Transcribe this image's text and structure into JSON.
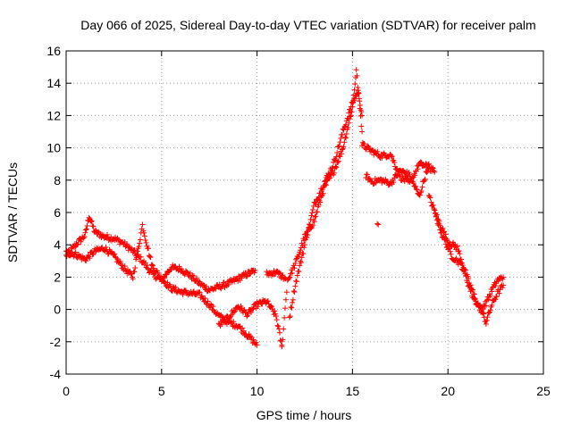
{
  "chart_data": {
    "type": "scatter",
    "title": "Day 066 of 2025, Sidereal Day-to-day VTEC variation (SDTVAR) for receiver palm",
    "xlabel": "GPS time / hours",
    "ylabel": "SDTVAR / TECUs",
    "xlim": [
      0,
      25
    ],
    "ylim": [
      -4,
      16
    ],
    "xticks": [
      0,
      5,
      10,
      15,
      20,
      25
    ],
    "yticks": [
      -4,
      -2,
      0,
      2,
      4,
      6,
      8,
      10,
      12,
      14,
      16
    ],
    "grid": true,
    "marker": "+",
    "series": [
      {
        "name": "palm",
        "color": "#ff0000",
        "bands": [
          {
            "x": [
              0.0,
              0.5,
              1.0,
              1.2,
              1.5,
              2.0,
              2.5,
              3.0,
              3.5,
              4.0,
              4.5,
              5.0,
              5.5,
              6.0,
              6.5,
              7.0,
              7.5,
              8.0,
              8.5,
              9.0,
              9.5,
              9.9
            ],
            "y": [
              3.3,
              4.0,
              4.6,
              5.8,
              4.8,
              4.5,
              4.4,
              4.1,
              3.6,
              3.0,
              2.2,
              1.8,
              2.6,
              2.5,
              2.1,
              1.6,
              1.2,
              1.4,
              1.6,
              1.9,
              2.2,
              2.4
            ]
          },
          {
            "x": [
              0.0,
              0.5,
              1.0,
              1.5,
              2.0,
              2.5,
              3.0,
              3.5,
              4.0,
              4.5,
              5.0,
              5.5,
              6.0,
              6.5,
              7.0,
              7.5,
              8.0,
              8.5,
              9.0,
              9.5,
              10.0
            ],
            "y": [
              3.5,
              3.4,
              3.1,
              3.6,
              3.8,
              3.3,
              2.6,
              2.0,
              5.2,
              2.7,
              1.9,
              1.3,
              1.1,
              1.0,
              0.9,
              0.3,
              -0.4,
              -0.8,
              -1.0,
              -1.6,
              -2.2
            ]
          },
          {
            "x": [
              10.5,
              11.0,
              11.5
            ],
            "y": [
              2.2,
              2.3,
              1.9
            ]
          },
          {
            "x": [
              8.0,
              8.5,
              9.0,
              9.5,
              10.0,
              10.5,
              11.0,
              11.3
            ],
            "y": [
              -1.0,
              -0.5,
              0.2,
              -0.3,
              0.3,
              0.5,
              -0.4,
              -2.3
            ]
          },
          {
            "x": [
              11.3,
              11.6,
              12.0,
              12.5,
              13.0,
              13.5,
              14.0,
              14.5,
              15.0,
              15.2,
              15.5
            ],
            "y": [
              -2.3,
              1.8,
              2.8,
              4.5,
              5.5,
              7.5,
              8.5,
              10.0,
              12.5,
              14.8,
              11.0
            ]
          },
          {
            "x": [
              11.7,
              12.0,
              12.5,
              13.0,
              13.5,
              14.0,
              14.5,
              15.0,
              15.3,
              15.5
            ],
            "y": [
              -0.5,
              1.5,
              4.0,
              6.5,
              7.8,
              9.0,
              11.0,
              12.8,
              13.5,
              12.0
            ]
          },
          {
            "x": [
              15.5,
              16.0,
              16.5,
              17.0,
              17.5,
              18.0,
              18.5,
              19.0,
              19.3
            ],
            "y": [
              10.2,
              9.8,
              9.5,
              9.6,
              8.2,
              7.8,
              9.0,
              8.8,
              8.5
            ]
          },
          {
            "x": [
              15.7,
              16.0,
              16.5,
              17.0,
              17.5,
              18.0,
              18.5,
              19.0
            ],
            "y": [
              8.3,
              7.9,
              8.0,
              7.8,
              8.6,
              8.3,
              7.0,
              9.0
            ]
          },
          {
            "x": [
              16.3
            ],
            "y": [
              5.3
            ]
          },
          {
            "x": [
              19.0,
              19.5,
              20.0,
              20.5,
              21.0,
              21.5,
              21.8,
              22.0,
              22.3,
              22.6,
              22.9
            ],
            "y": [
              7.0,
              5.5,
              4.2,
              3.8,
              2.0,
              0.5,
              -0.2,
              -0.8,
              0.3,
              1.0,
              1.5
            ]
          },
          {
            "x": [
              19.3,
              19.7,
              20.2,
              20.7,
              21.3,
              21.7,
              22.0,
              22.3,
              22.6,
              22.9
            ],
            "y": [
              6.0,
              4.6,
              3.3,
              2.8,
              0.8,
              0.0,
              0.4,
              1.2,
              1.8,
              2.0
            ]
          }
        ]
      }
    ]
  }
}
